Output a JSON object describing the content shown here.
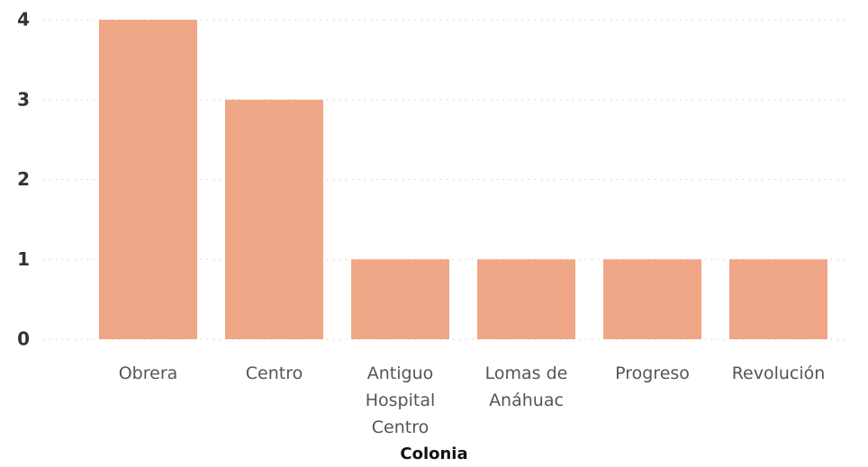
{
  "chart_data": {
    "type": "bar",
    "x_label": "Colonia",
    "categories": [
      "Obrera",
      "Centro",
      "Antiguo Hospital Centro",
      "Lomas de Anáhuac",
      "Progreso",
      "Revolución"
    ],
    "values": [
      4,
      3,
      1,
      1,
      1,
      1
    ],
    "color": "#f0a787",
    "ylim": [
      0,
      4
    ],
    "yticks": [
      0,
      1,
      2,
      3,
      4
    ],
    "grid": true
  }
}
